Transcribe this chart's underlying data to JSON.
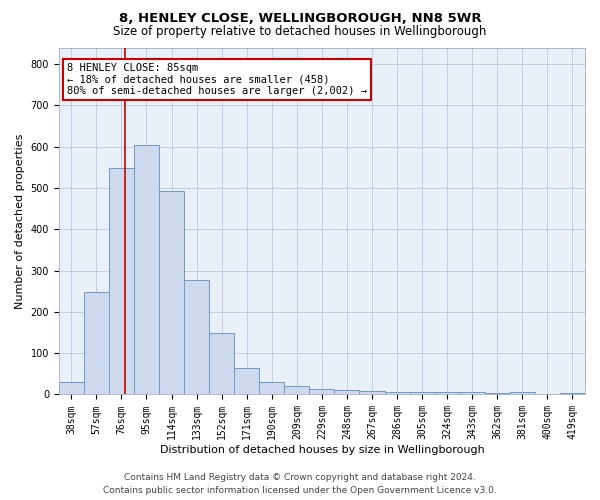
{
  "title": "8, HENLEY CLOSE, WELLINGBOROUGH, NN8 5WR",
  "subtitle": "Size of property relative to detached houses in Wellingborough",
  "xlabel": "Distribution of detached houses by size in Wellingborough",
  "ylabel": "Number of detached properties",
  "categories": [
    "38sqm",
    "57sqm",
    "76sqm",
    "95sqm",
    "114sqm",
    "133sqm",
    "152sqm",
    "171sqm",
    "190sqm",
    "209sqm",
    "229sqm",
    "248sqm",
    "267sqm",
    "286sqm",
    "305sqm",
    "324sqm",
    "343sqm",
    "362sqm",
    "381sqm",
    "400sqm",
    "419sqm"
  ],
  "values": [
    30,
    248,
    548,
    605,
    493,
    277,
    148,
    63,
    30,
    20,
    13,
    12,
    8,
    5,
    5,
    5,
    5,
    3,
    5,
    2,
    3
  ],
  "bar_color": "#cdd9ed",
  "bar_edge_color": "#7098c8",
  "red_line_x": 2.15,
  "annotation_text": "8 HENLEY CLOSE: 85sqm\n← 18% of detached houses are smaller (458)\n80% of semi-detached houses are larger (2,002) →",
  "annotation_box_color": "#ffffff",
  "annotation_box_edge": "#cc0000",
  "red_line_color": "#cc0000",
  "ylim": [
    0,
    840
  ],
  "yticks": [
    0,
    100,
    200,
    300,
    400,
    500,
    600,
    700,
    800
  ],
  "footer_line1": "Contains HM Land Registry data © Crown copyright and database right 2024.",
  "footer_line2": "Contains public sector information licensed under the Open Government Licence v3.0.",
  "bg_color": "#ffffff",
  "plot_bg_color": "#eaf0f8",
  "grid_color": "#b8c8de",
  "title_fontsize": 9.5,
  "subtitle_fontsize": 8.5,
  "axis_label_fontsize": 8,
  "tick_fontsize": 7,
  "annotation_fontsize": 7.5,
  "footer_fontsize": 6.5
}
